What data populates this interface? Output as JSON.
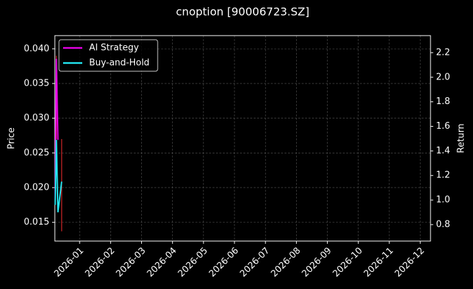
{
  "chart_data": {
    "type": "line",
    "title": "cnoption [90006723.SZ]",
    "y_label": "Price",
    "y2_label": "Return",
    "x": [
      0.21,
      0.25,
      0.3,
      0.42
    ],
    "series": [
      {
        "name": "AI Strategy",
        "color": "#e600e6",
        "axis": "y2",
        "values": [
          1.0,
          2.15,
          1.49,
          null
        ]
      },
      {
        "name": "Buy-and-Hold",
        "color": "#22e6f0",
        "axis": "y2",
        "values": [
          0.96,
          1.49,
          0.9,
          1.15
        ]
      }
    ],
    "price_bars": [
      {
        "x": 0.25,
        "low": 0.027,
        "high": 0.039,
        "color": "#d62728"
      },
      {
        "x": 0.42,
        "low": 0.0137,
        "high": 0.027,
        "color": "#d62728"
      }
    ],
    "xlim": [
      0.2,
      12.33
    ],
    "xticks": [
      {
        "value": 1,
        "label": "2026-01"
      },
      {
        "value": 2,
        "label": "2026-02"
      },
      {
        "value": 3,
        "label": "2026-03"
      },
      {
        "value": 4,
        "label": "2026-04"
      },
      {
        "value": 5,
        "label": "2026-05"
      },
      {
        "value": 6,
        "label": "2026-06"
      },
      {
        "value": 7,
        "label": "2026-07"
      },
      {
        "value": 8,
        "label": "2026-08"
      },
      {
        "value": 9,
        "label": "2026-09"
      },
      {
        "value": 10,
        "label": "2026-10"
      },
      {
        "value": 11,
        "label": "2026-11"
      },
      {
        "value": 12,
        "label": "2026-12"
      }
    ],
    "ylim": [
      0.0123,
      0.0419
    ],
    "yticks": [
      {
        "value": 0.015,
        "label": "0.015"
      },
      {
        "value": 0.02,
        "label": "0.020"
      },
      0.025,
      {
        "value": 0.03,
        "label": "0.030"
      },
      0.035,
      {
        "value": 0.04,
        "label": "0.040"
      }
    ],
    "y2lim": [
      0.666,
      2.339
    ],
    "y2ticks": [
      0.8,
      {
        "value": 1,
        "label": "1.0"
      },
      1.2,
      1.4,
      1.6,
      1.8,
      {
        "value": 2,
        "label": "2.0"
      },
      2.2
    ],
    "grid": true,
    "legend": "upper left"
  }
}
